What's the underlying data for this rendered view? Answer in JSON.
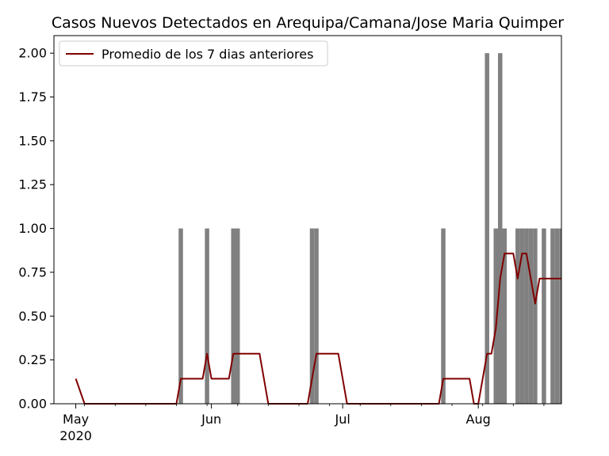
{
  "chart_data": {
    "type": "bar",
    "title": "Casos Nuevos Detectados en Arequipa/Camana/Jose Maria Quimper",
    "xlabel": "",
    "ylabel": "",
    "x_range": [
      "2020-04-26",
      "2020-08-20"
    ],
    "ylim": [
      0,
      2.1
    ],
    "yticks": [
      "0.00",
      "0.25",
      "0.50",
      "0.75",
      "1.00",
      "1.25",
      "1.50",
      "1.75",
      "2.00"
    ],
    "xticks": [
      {
        "date": "2020-05-01",
        "label": "May",
        "sublabel": "2020"
      },
      {
        "date": "2020-06-01",
        "label": "Jun",
        "sublabel": ""
      },
      {
        "date": "2020-07-01",
        "label": "Jul",
        "sublabel": ""
      },
      {
        "date": "2020-08-01",
        "label": "Aug",
        "sublabel": ""
      }
    ],
    "grid": false,
    "legend": {
      "position": "top-left",
      "entries": [
        "Promedio de los 7 dias anteriores"
      ]
    },
    "series": [
      {
        "type": "bar",
        "color": "#808080",
        "points": [
          {
            "x": "2020-05-25",
            "y": 1
          },
          {
            "x": "2020-05-31",
            "y": 1
          },
          {
            "x": "2020-06-06",
            "y": 1
          },
          {
            "x": "2020-06-07",
            "y": 1
          },
          {
            "x": "2020-06-24",
            "y": 1
          },
          {
            "x": "2020-06-25",
            "y": 1
          },
          {
            "x": "2020-07-24",
            "y": 1
          },
          {
            "x": "2020-08-03",
            "y": 2
          },
          {
            "x": "2020-08-05",
            "y": 1
          },
          {
            "x": "2020-08-06",
            "y": 2
          },
          {
            "x": "2020-08-07",
            "y": 1
          },
          {
            "x": "2020-08-10",
            "y": 1
          },
          {
            "x": "2020-08-11",
            "y": 1
          },
          {
            "x": "2020-08-12",
            "y": 1
          },
          {
            "x": "2020-08-13",
            "y": 1
          },
          {
            "x": "2020-08-14",
            "y": 1
          },
          {
            "x": "2020-08-16",
            "y": 1
          },
          {
            "x": "2020-08-18",
            "y": 1
          },
          {
            "x": "2020-08-19",
            "y": 1
          },
          {
            "x": "2020-08-20",
            "y": 1
          }
        ]
      },
      {
        "type": "line",
        "name": "Promedio de los 7 dias anteriores",
        "color": "#800000",
        "points": [
          {
            "x": "2020-05-01",
            "y": 0.1429
          },
          {
            "x": "2020-05-03",
            "y": 0
          },
          {
            "x": "2020-05-24",
            "y": 0
          },
          {
            "x": "2020-05-25",
            "y": 0.1429
          },
          {
            "x": "2020-05-30",
            "y": 0.1429
          },
          {
            "x": "2020-05-31",
            "y": 0.2857
          },
          {
            "x": "2020-06-01",
            "y": 0.1429
          },
          {
            "x": "2020-06-05",
            "y": 0.1429
          },
          {
            "x": "2020-06-06",
            "y": 0.2857
          },
          {
            "x": "2020-06-12",
            "y": 0.2857
          },
          {
            "x": "2020-06-14",
            "y": 0
          },
          {
            "x": "2020-06-23",
            "y": 0
          },
          {
            "x": "2020-06-25",
            "y": 0.2857
          },
          {
            "x": "2020-06-30",
            "y": 0.2857
          },
          {
            "x": "2020-07-02",
            "y": 0
          },
          {
            "x": "2020-07-23",
            "y": 0
          },
          {
            "x": "2020-07-24",
            "y": 0.1429
          },
          {
            "x": "2020-07-30",
            "y": 0.1429
          },
          {
            "x": "2020-07-31",
            "y": 0
          },
          {
            "x": "2020-08-01",
            "y": 0
          },
          {
            "x": "2020-08-03",
            "y": 0.2857
          },
          {
            "x": "2020-08-04",
            "y": 0.2857
          },
          {
            "x": "2020-08-05",
            "y": 0.4286
          },
          {
            "x": "2020-08-06",
            "y": 0.7143
          },
          {
            "x": "2020-08-07",
            "y": 0.8571
          },
          {
            "x": "2020-08-09",
            "y": 0.8571
          },
          {
            "x": "2020-08-10",
            "y": 0.7143
          },
          {
            "x": "2020-08-11",
            "y": 0.8571
          },
          {
            "x": "2020-08-12",
            "y": 0.8571
          },
          {
            "x": "2020-08-13",
            "y": 0.7143
          },
          {
            "x": "2020-08-14",
            "y": 0.5714
          },
          {
            "x": "2020-08-15",
            "y": 0.7143
          },
          {
            "x": "2020-08-20",
            "y": 0.7143
          }
        ]
      }
    ]
  }
}
